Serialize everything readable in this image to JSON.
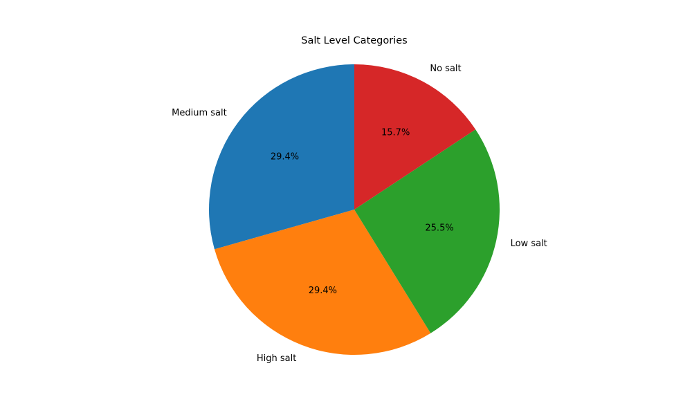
{
  "chart_data": {
    "type": "pie",
    "title": "Salt Level Categories",
    "slices": [
      {
        "label": "Medium salt",
        "value": 29.4,
        "pct_label": "29.4%",
        "color": "#1f77b4"
      },
      {
        "label": "High salt",
        "value": 29.4,
        "pct_label": "29.4%",
        "color": "#ff7f0e"
      },
      {
        "label": "Low salt",
        "value": 25.5,
        "pct_label": "25.5%",
        "color": "#2ca02c"
      },
      {
        "label": "No salt",
        "value": 15.7,
        "pct_label": "15.7%",
        "color": "#d62728"
      }
    ],
    "start_angle_deg": 90,
    "direction": "counterclockwise",
    "legend": "none"
  }
}
